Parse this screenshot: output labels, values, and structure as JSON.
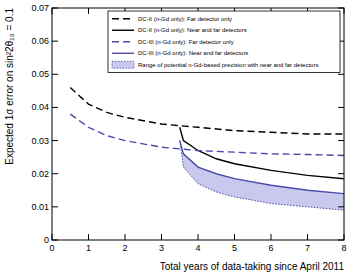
{
  "chart_data": {
    "type": "line",
    "x_label": "Total years of data-taking since April 2011",
    "y_label": "Expected 1σ error on sin²2θ₁₃ = 0.1",
    "xlim": [
      0,
      8
    ],
    "ylim": [
      0,
      0.07
    ],
    "xticks": [
      0,
      1,
      2,
      3,
      4,
      5,
      6,
      7,
      8
    ],
    "yticks": [
      0,
      0.01,
      0.02,
      0.03,
      0.04,
      0.05,
      0.06,
      0.07
    ],
    "grid": false,
    "legend": "upper right",
    "series": [
      {
        "name": "DC-II (n-Gd only): Far detector only",
        "color": "#000000",
        "line_style": "dashed",
        "x": [
          0.5,
          1,
          1.5,
          2,
          3,
          4,
          5,
          6,
          7,
          8
        ],
        "values": [
          0.046,
          0.041,
          0.0385,
          0.037,
          0.035,
          0.034,
          0.033,
          0.0325,
          0.032,
          0.032
        ]
      },
      {
        "name": "DC-II (n-Gd only): Near and far detectors",
        "color": "#000000",
        "line_style": "solid",
        "x": [
          3.5,
          3.6,
          4,
          4.5,
          5,
          6,
          7,
          8
        ],
        "values": [
          0.034,
          0.03,
          0.027,
          0.0245,
          0.023,
          0.021,
          0.0195,
          0.0185
        ]
      },
      {
        "name": "DC-III (n-Gd only): Far detector only",
        "color": "#4a4aa8",
        "line_style": "dashed",
        "x": [
          0.5,
          1,
          1.5,
          2,
          3,
          4,
          5,
          6,
          7,
          8
        ],
        "values": [
          0.038,
          0.034,
          0.0315,
          0.03,
          0.028,
          0.027,
          0.0265,
          0.026,
          0.0258,
          0.0255
        ]
      },
      {
        "name": "DC-III (n-Gd only): Near and far detectors",
        "color": "#4a4aa8",
        "line_style": "solid",
        "x": [
          3.5,
          3.6,
          4,
          4.5,
          5,
          6,
          7,
          8
        ],
        "values": [
          0.03,
          0.026,
          0.022,
          0.02,
          0.0185,
          0.0165,
          0.015,
          0.014
        ]
      },
      {
        "name": "Range of potential n-Gd-based precision with near and far detectors",
        "type": "area",
        "color": "#c9c9f0",
        "line_style": "dotted",
        "x": [
          3.5,
          3.6,
          4,
          4.5,
          5,
          6,
          7,
          8
        ],
        "values": [
          0.03,
          0.026,
          0.022,
          0.02,
          0.0185,
          0.0165,
          0.015,
          0.014
        ],
        "lower": [
          0.03,
          0.022,
          0.017,
          0.0145,
          0.013,
          0.011,
          0.01,
          0.009
        ]
      }
    ]
  }
}
